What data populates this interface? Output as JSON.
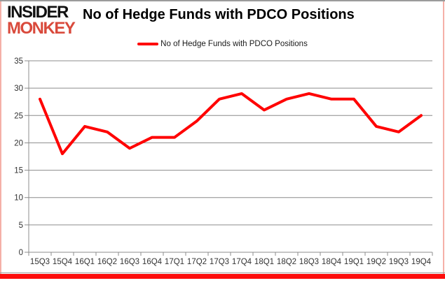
{
  "header": {
    "logo_line1": "INSIDER",
    "logo_line2": "MONKEY",
    "title": "No of Hedge Funds with PDCO Positions"
  },
  "legend": {
    "label": "No of Hedge Funds with PDCO Positions"
  },
  "colors": {
    "series": "#FF0000",
    "logo_accent": "#D94A3C",
    "gridline": "#8c8c8c",
    "axis": "#8c8c8c",
    "tick_label": "#333333",
    "frame_top": "#9B9B9B",
    "frame_side": "#F5B0A8",
    "bottom_bar": "#FD0D0C"
  },
  "chart_data": {
    "type": "line",
    "title": "No of Hedge Funds with PDCO Positions",
    "series_name": "No of Hedge Funds with PDCO Positions",
    "categories": [
      "15Q3",
      "15Q4",
      "16Q1",
      "16Q2",
      "16Q3",
      "16Q4",
      "17Q1",
      "17Q2",
      "17Q3",
      "17Q4",
      "18Q1",
      "18Q2",
      "18Q3",
      "18Q4",
      "19Q1",
      "19Q2",
      "19Q3",
      "19Q4"
    ],
    "values": [
      28,
      18,
      23,
      22,
      19,
      21,
      21,
      24,
      28,
      29,
      26,
      28,
      29,
      28,
      28,
      23,
      22,
      25
    ],
    "xlabel": "",
    "ylabel": "",
    "ylim": [
      0,
      35
    ],
    "yticks": [
      0,
      5,
      10,
      15,
      20,
      25,
      30,
      35
    ],
    "grid": true,
    "legend_position": "top-center"
  }
}
